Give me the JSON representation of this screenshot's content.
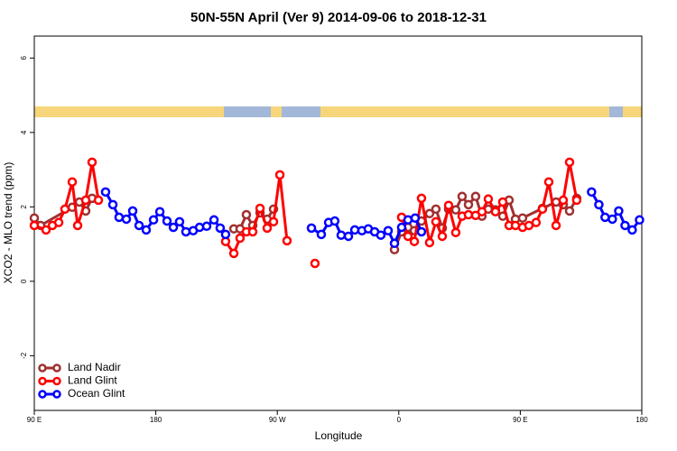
{
  "chart_data": {
    "type": "line",
    "title": "50N-55N April (Ver 9)   2014-09-06 to 2018-12-31",
    "x_label": "Longitude",
    "y_label": "XCO2 - MLO trend (ppm)",
    "xlim": [
      90,
      540
    ],
    "ylim": [
      -3.47,
      6.59
    ],
    "xticks": [
      {
        "value": 90,
        "label": "90 E"
      },
      180,
      {
        "value": 270,
        "label": "90 W"
      },
      {
        "value": 360,
        "label": "0"
      },
      {
        "value": 450,
        "label": "90 E"
      },
      {
        "value": 540,
        "label": "180"
      }
    ],
    "yticks": [
      -2,
      0,
      2,
      4,
      6
    ],
    "legend": "bottom-left",
    "series": [
      {
        "name": "Land Nadir",
        "color": "#a03030",
        "x": [
          90.0,
          94.7,
          118.1,
          123.4,
          128.1,
          132.8,
          null,
          237.8,
          242.4,
          247.1,
          251.8,
          257.2,
          262.5,
          267.2,
          null,
          356.8,
          362.1,
          366.8,
          371.5,
          376.8,
          382.8,
          387.5,
          392.2,
          396.9,
          402.2,
          406.9,
          411.6,
          416.9,
          421.6,
          426.3,
          431.6,
          437.0,
          441.7,
          446.4,
          451.7,
          466.4,
          476.5,
          481.8,
          486.5,
          491.8
        ],
        "values": [
          1.7,
          1.5,
          1.99,
          2.13,
          1.89,
          2.23,
          null,
          1.41,
          1.41,
          1.79,
          1.5,
          1.84,
          1.67,
          1.94,
          null,
          0.85,
          1.33,
          1.45,
          1.36,
          1.62,
          1.82,
          1.94,
          1.43,
          1.94,
          1.92,
          2.28,
          2.06,
          2.28,
          1.75,
          1.94,
          1.92,
          1.75,
          2.18,
          1.67,
          1.7,
          1.96,
          2.13,
          2.06,
          1.89,
          2.23
        ]
      },
      {
        "name": "Land Glint",
        "color": "#ff0000",
        "x": [
          90.0,
          98.7,
          103.4,
          108.1,
          112.7,
          118.1,
          122.1,
          128.1,
          132.8,
          137.5,
          null,
          231.7,
          237.8,
          242.4,
          247.1,
          251.8,
          257.2,
          262.5,
          267.2,
          271.9,
          277.2,
          null,
          297.9,
          null,
          362.1,
          366.8,
          371.5,
          376.8,
          382.8,
          387.5,
          392.2,
          396.9,
          402.2,
          406.9,
          411.6,
          416.9,
          421.6,
          426.3,
          431.6,
          437.0,
          441.7,
          446.4,
          451.7,
          456.4,
          461.7,
          466.4,
          471.1,
          476.5,
          481.8,
          486.5,
          491.8
        ],
        "values": [
          1.5,
          1.38,
          1.5,
          1.58,
          1.94,
          2.67,
          1.5,
          2.18,
          3.2,
          2.18,
          null,
          1.07,
          0.75,
          1.16,
          1.33,
          1.33,
          1.96,
          1.43,
          1.6,
          2.86,
          1.09,
          null,
          0.48,
          null,
          1.72,
          1.21,
          1.07,
          2.23,
          1.04,
          1.6,
          1.21,
          2.04,
          1.31,
          1.75,
          1.79,
          1.77,
          1.87,
          2.21,
          1.87,
          2.13,
          1.5,
          1.5,
          1.45,
          1.5,
          1.58,
          1.94,
          2.67,
          1.5,
          2.18,
          3.2,
          2.18
        ]
      },
      {
        "name": "Ocean Glint",
        "color": "#0000ff",
        "x": [
          142.8,
          148.2,
          152.8,
          158.2,
          162.9,
          167.6,
          172.9,
          178.3,
          183.0,
          188.3,
          193.0,
          197.6,
          202.3,
          207.7,
          212.4,
          217.7,
          223.1,
          227.7,
          231.7,
          null,
          295.3,
          302.6,
          308.0,
          312.6,
          317.3,
          322.7,
          327.4,
          332.7,
          337.4,
          342.1,
          346.7,
          352.1,
          356.8,
          362.1,
          366.8,
          372.1,
          376.8,
          null,
          502.8,
          508.2,
          512.8,
          518.2,
          522.9,
          527.6,
          532.9,
          538.3
        ],
        "values": [
          2.4,
          2.06,
          1.72,
          1.67,
          1.89,
          1.5,
          1.38,
          1.65,
          1.87,
          1.62,
          1.45,
          1.6,
          1.33,
          1.36,
          1.45,
          1.48,
          1.65,
          1.43,
          1.26,
          null,
          1.43,
          1.26,
          1.58,
          1.62,
          1.24,
          1.21,
          1.38,
          1.36,
          1.41,
          1.33,
          1.24,
          1.36,
          1.02,
          1.45,
          1.65,
          1.7,
          1.33,
          null,
          2.4,
          2.06,
          1.72,
          1.67,
          1.89,
          1.5,
          1.38,
          1.65
        ]
      }
    ]
  }
}
